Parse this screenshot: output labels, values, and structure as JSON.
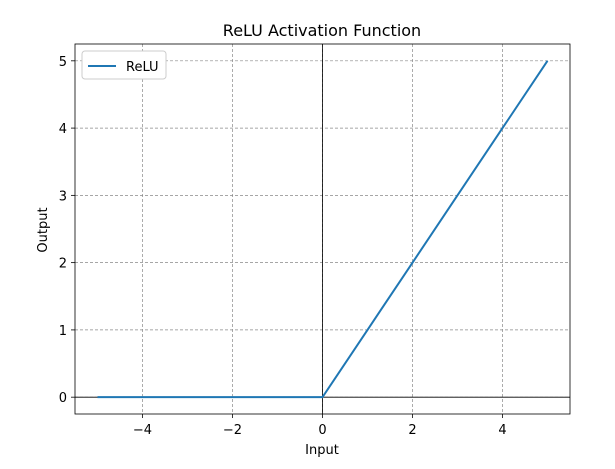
{
  "chart_data": {
    "type": "line",
    "title": "ReLU Activation Function",
    "x_label": "Input",
    "y_label": "Output",
    "x": [
      -5,
      -4,
      -3,
      -2,
      -1,
      0,
      1,
      2,
      3,
      4,
      5
    ],
    "series": [
      {
        "name": "ReLU",
        "color": "#1f77b4",
        "values": [
          0,
          0,
          0,
          0,
          0,
          0,
          1,
          2,
          3,
          4,
          5
        ]
      }
    ],
    "xlim": [
      -5.5,
      5.5
    ],
    "ylim": [
      -0.25,
      5.25
    ],
    "xticks": [
      {
        "value": -4,
        "label": "−4"
      },
      {
        "value": -2,
        "label": "−2"
      },
      0,
      2,
      4
    ],
    "yticks": [
      0,
      1,
      2,
      3,
      4,
      5
    ],
    "grid": true,
    "axhline": 0,
    "axvline": 0,
    "legend": "upper left"
  }
}
